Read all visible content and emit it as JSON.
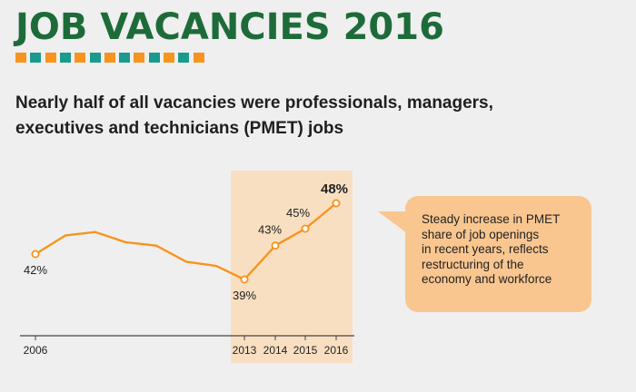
{
  "header": {
    "title": "JOB VACANCIES 2016",
    "accent_colors": [
      "#f7941d",
      "#1b9a8e"
    ]
  },
  "subtitle": {
    "line1": "Nearly half of all vacancies were professionals, managers,",
    "line2": "executives and technicians (PMET) jobs"
  },
  "callout": {
    "lines": [
      "Steady increase in PMET",
      "share of job openings",
      "in recent years, reflects",
      "restructuring of the",
      "economy and workforce"
    ],
    "color": "#f9c690"
  },
  "chart_data": {
    "type": "line",
    "x": [
      2006,
      2007,
      2008,
      2009,
      2010,
      2011,
      2012,
      2013,
      2014,
      2015,
      2016
    ],
    "values": [
      42,
      44.2,
      44.6,
      43.4,
      43.0,
      41.1,
      40.6,
      39,
      43,
      45,
      48
    ],
    "point_labels": {
      "2006": "42%",
      "2013": "39%",
      "2014": "43%",
      "2015": "45%",
      "2016": "48%"
    },
    "tick_labels": [
      "2006",
      "2013",
      "2014",
      "2015",
      "2016"
    ],
    "highlight_range": [
      2013,
      2016
    ],
    "line_color": "#f7941d",
    "highlight_color": "#f9dfc2",
    "grid": false
  }
}
